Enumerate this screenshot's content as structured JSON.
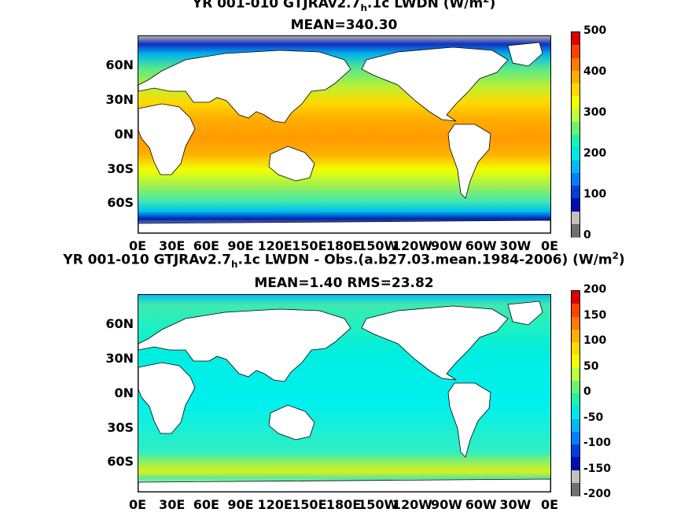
{
  "panel_top": {
    "title_pre": "YR 001-010 GTJRAv2.7",
    "title_sub": "h",
    "title_post": ".1c LWDN (W/m",
    "title_sup": "2",
    "title_end": ")",
    "stats": "MEAN=340.30",
    "colorbar_ticks": [
      "500",
      "400",
      "300",
      "200",
      "100",
      "0"
    ],
    "colorbar_colors": [
      "#dd0000",
      "#ff4000",
      "#ff7a00",
      "#ffae00",
      "#ffd800",
      "#f0ff00",
      "#b8ff40",
      "#6cf070",
      "#20f0b0",
      "#00e8e8",
      "#00b8f8",
      "#0080ff",
      "#0040e0",
      "#0010b0",
      "#c0c0c0",
      "#707070"
    ]
  },
  "panel_bottom": {
    "title_pre": "YR 001-010 GTJRAv2.7",
    "title_sub": "h",
    "title_post": ".1c LWDN - Obs.(a.b27.03.mean.1984-2006) (W/m",
    "title_sup": "2",
    "title_end": ")",
    "stats": "MEAN=1.40 RMS=23.82",
    "colorbar_ticks": [
      "200",
      "150",
      "100",
      "50",
      "0",
      "-50",
      "-100",
      "-150",
      "-200"
    ],
    "colorbar_colors": [
      "#dd0000",
      "#ff4000",
      "#ff7a00",
      "#ffae00",
      "#ffd800",
      "#f0ff00",
      "#b8ff40",
      "#6cf070",
      "#20f0b0",
      "#00e8e8",
      "#00b8f8",
      "#0080ff",
      "#0040e0",
      "#0010b0",
      "#c0c0c0",
      "#707070"
    ]
  },
  "x_ticks": [
    "0E",
    "30E",
    "60E",
    "90E",
    "120E",
    "150E",
    "180E",
    "150W",
    "120W",
    "90W",
    "60W",
    "30W",
    "0E"
  ],
  "y_ticks": [
    "60N",
    "30N",
    "0N",
    "30S",
    "60S"
  ]
}
